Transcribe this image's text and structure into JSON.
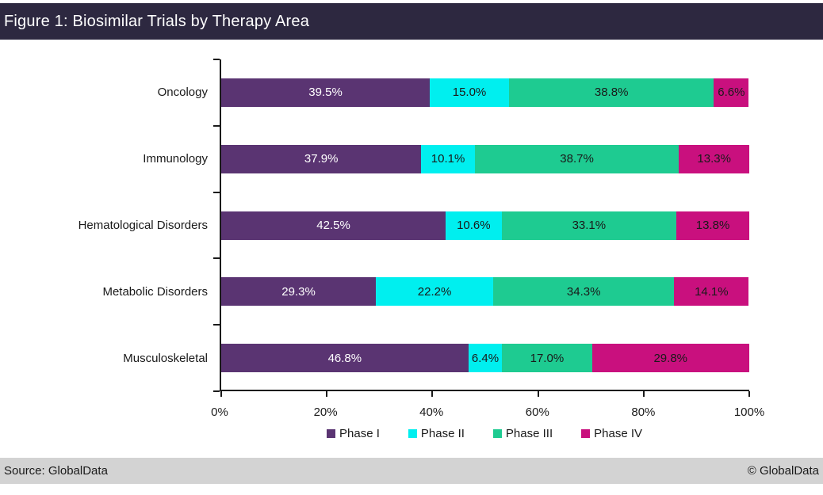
{
  "header": {
    "title": "Figure 1: Biosimilar Trials by Therapy Area",
    "background": "#2D2840",
    "text_color": "#FFFFFF"
  },
  "footer": {
    "source": "Source: GlobalData",
    "copyright": "© GlobalData",
    "background": "#D3D3D3"
  },
  "chart_data": {
    "type": "bar",
    "orientation": "horizontal",
    "stacked": true,
    "title": "Figure 1: Biosimilar Trials by Therapy Area",
    "categories": [
      "Oncology",
      "Immunology",
      "Hematological Disorders",
      "Metabolic Disorders",
      "Musculoskeletal"
    ],
    "series": [
      {
        "name": "Phase I",
        "color": "#5A3472",
        "label_color": "#FFFFFF",
        "values": [
          39.5,
          37.9,
          42.5,
          29.3,
          46.8
        ]
      },
      {
        "name": "Phase II",
        "color": "#00EFEF",
        "label_color": "#1A1A1A",
        "values": [
          15.0,
          10.1,
          10.6,
          22.2,
          6.4
        ]
      },
      {
        "name": "Phase III",
        "color": "#1ECB91",
        "label_color": "#1A1A1A",
        "values": [
          38.8,
          38.7,
          33.1,
          34.3,
          17.0
        ]
      },
      {
        "name": "Phase IV",
        "color": "#C9107E",
        "label_color": "#1A1A1A",
        "values": [
          6.6,
          13.3,
          13.8,
          14.1,
          29.8
        ]
      }
    ],
    "value_suffix": "%",
    "value_decimals": 1,
    "xlim": [
      0,
      100
    ],
    "xticks": [
      {
        "value": 0,
        "label": "0%"
      },
      {
        "value": 20,
        "label": "20%"
      },
      {
        "value": 40,
        "label": "40%"
      },
      {
        "value": 60,
        "label": "60%"
      },
      {
        "value": 80,
        "label": "80%"
      },
      {
        "value": 100,
        "label": "100%"
      }
    ],
    "legend_position": "bottom",
    "grid": false
  }
}
